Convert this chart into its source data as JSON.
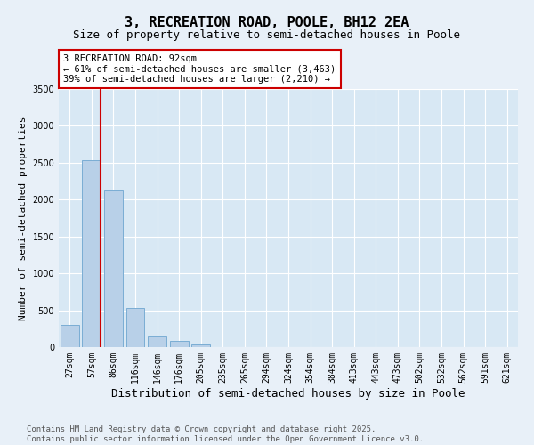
{
  "title": "3, RECREATION ROAD, POOLE, BH12 2EA",
  "subtitle": "Size of property relative to semi-detached houses in Poole",
  "xlabel": "Distribution of semi-detached houses by size in Poole",
  "ylabel": "Number of semi-detached properties",
  "bins": [
    "27sqm",
    "57sqm",
    "86sqm",
    "116sqm",
    "146sqm",
    "176sqm",
    "205sqm",
    "235sqm",
    "265sqm",
    "294sqm",
    "324sqm",
    "354sqm",
    "384sqm",
    "413sqm",
    "443sqm",
    "473sqm",
    "502sqm",
    "532sqm",
    "562sqm",
    "591sqm",
    "621sqm"
  ],
  "values": [
    300,
    2530,
    2120,
    530,
    145,
    80,
    40,
    0,
    0,
    0,
    0,
    0,
    0,
    0,
    0,
    0,
    0,
    0,
    0,
    0,
    0
  ],
  "bar_color": "#b8d0e8",
  "bar_edge_color": "#7aadd4",
  "red_line_x": 1.43,
  "annotation_text_line1": "3 RECREATION ROAD: 92sqm",
  "annotation_text_line2": "← 61% of semi-detached houses are smaller (3,463)",
  "annotation_text_line3": "39% of semi-detached houses are larger (2,210) →",
  "annotation_box_color": "#ffffff",
  "annotation_box_edge_color": "#cc0000",
  "ylim": [
    0,
    3500
  ],
  "yticks": [
    0,
    500,
    1000,
    1500,
    2000,
    2500,
    3000,
    3500
  ],
  "background_color": "#e8f0f8",
  "plot_bg_color": "#d8e8f4",
  "footer_line1": "Contains HM Land Registry data © Crown copyright and database right 2025.",
  "footer_line2": "Contains public sector information licensed under the Open Government Licence v3.0.",
  "title_fontsize": 11,
  "subtitle_fontsize": 9,
  "xlabel_fontsize": 9,
  "ylabel_fontsize": 8,
  "tick_fontsize": 7,
  "annotation_fontsize": 7.5,
  "footer_fontsize": 6.5
}
